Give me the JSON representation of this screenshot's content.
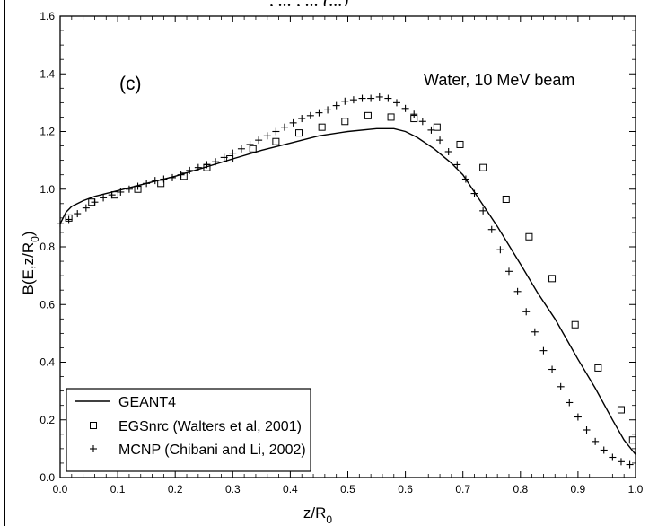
{
  "header_clip": ", ... , ... (...)",
  "chart_data": {
    "type": "line+scatter",
    "panel_label": "(c)",
    "annotation": "Water, 10 MeV beam",
    "xlabel": "z/R",
    "xlabel_sub": "0",
    "ylabel": "B(E,z/R",
    "ylabel_sub": "0",
    "ylabel_close": ")",
    "xlim": [
      0.0,
      1.0
    ],
    "ylim": [
      0.0,
      1.6
    ],
    "x_ticks": [
      "0.0",
      "0.1",
      "0.2",
      "0.3",
      "0.4",
      "0.5",
      "0.6",
      "0.7",
      "0.8",
      "0.9",
      "1.0"
    ],
    "y_ticks": [
      "0.0",
      "0.2",
      "0.4",
      "0.6",
      "0.8",
      "1.0",
      "1.2",
      "1.4",
      "1.6"
    ],
    "legend_position": "bottom-left",
    "series": [
      {
        "name": "GEANT4",
        "style": "line",
        "x": [
          0.0,
          0.01,
          0.02,
          0.04,
          0.06,
          0.08,
          0.1,
          0.15,
          0.2,
          0.25,
          0.3,
          0.35,
          0.4,
          0.45,
          0.5,
          0.55,
          0.58,
          0.6,
          0.62,
          0.65,
          0.68,
          0.7,
          0.73,
          0.76,
          0.8,
          0.83,
          0.86,
          0.9,
          0.93,
          0.96,
          0.98,
          1.0
        ],
        "y": [
          0.88,
          0.92,
          0.94,
          0.96,
          0.975,
          0.985,
          0.995,
          1.02,
          1.045,
          1.075,
          1.105,
          1.135,
          1.16,
          1.185,
          1.2,
          1.21,
          1.21,
          1.2,
          1.18,
          1.14,
          1.09,
          1.05,
          0.96,
          0.87,
          0.74,
          0.64,
          0.55,
          0.41,
          0.31,
          0.2,
          0.13,
          0.08
        ]
      },
      {
        "name": "EGSnrc (Walters et al, 2001)",
        "style": "square",
        "x": [
          0.015,
          0.055,
          0.095,
          0.135,
          0.175,
          0.215,
          0.255,
          0.295,
          0.335,
          0.375,
          0.415,
          0.455,
          0.495,
          0.535,
          0.575,
          0.615,
          0.655,
          0.695,
          0.735,
          0.775,
          0.815,
          0.855,
          0.895,
          0.935,
          0.975,
          0.995
        ],
        "y": [
          0.9,
          0.955,
          0.98,
          1.0,
          1.02,
          1.045,
          1.075,
          1.105,
          1.14,
          1.165,
          1.195,
          1.215,
          1.235,
          1.255,
          1.25,
          1.245,
          1.215,
          1.155,
          1.075,
          0.965,
          0.835,
          0.69,
          0.53,
          0.38,
          0.235,
          0.13
        ]
      },
      {
        "name": "MCNP (Chibani and Li, 2002)",
        "style": "plus",
        "x": [
          0.0,
          0.015,
          0.03,
          0.045,
          0.06,
          0.075,
          0.09,
          0.105,
          0.12,
          0.135,
          0.15,
          0.165,
          0.18,
          0.195,
          0.21,
          0.225,
          0.24,
          0.255,
          0.27,
          0.285,
          0.3,
          0.315,
          0.33,
          0.345,
          0.36,
          0.375,
          0.39,
          0.405,
          0.42,
          0.435,
          0.45,
          0.465,
          0.48,
          0.495,
          0.51,
          0.525,
          0.54,
          0.555,
          0.57,
          0.585,
          0.6,
          0.615,
          0.63,
          0.645,
          0.66,
          0.675,
          0.69,
          0.705,
          0.72,
          0.735,
          0.75,
          0.765,
          0.78,
          0.795,
          0.81,
          0.825,
          0.84,
          0.855,
          0.87,
          0.885,
          0.9,
          0.915,
          0.93,
          0.945,
          0.96,
          0.975,
          0.99
        ],
        "y": [
          0.88,
          0.895,
          0.915,
          0.935,
          0.955,
          0.97,
          0.98,
          0.99,
          1.0,
          1.01,
          1.02,
          1.03,
          1.035,
          1.04,
          1.05,
          1.065,
          1.075,
          1.085,
          1.095,
          1.11,
          1.125,
          1.14,
          1.155,
          1.17,
          1.185,
          1.2,
          1.215,
          1.23,
          1.245,
          1.255,
          1.265,
          1.275,
          1.29,
          1.305,
          1.31,
          1.315,
          1.315,
          1.32,
          1.315,
          1.3,
          1.28,
          1.26,
          1.235,
          1.205,
          1.17,
          1.13,
          1.085,
          1.035,
          0.985,
          0.925,
          0.86,
          0.79,
          0.715,
          0.645,
          0.575,
          0.505,
          0.44,
          0.375,
          0.315,
          0.26,
          0.21,
          0.165,
          0.125,
          0.095,
          0.07,
          0.055,
          0.045
        ]
      }
    ]
  }
}
